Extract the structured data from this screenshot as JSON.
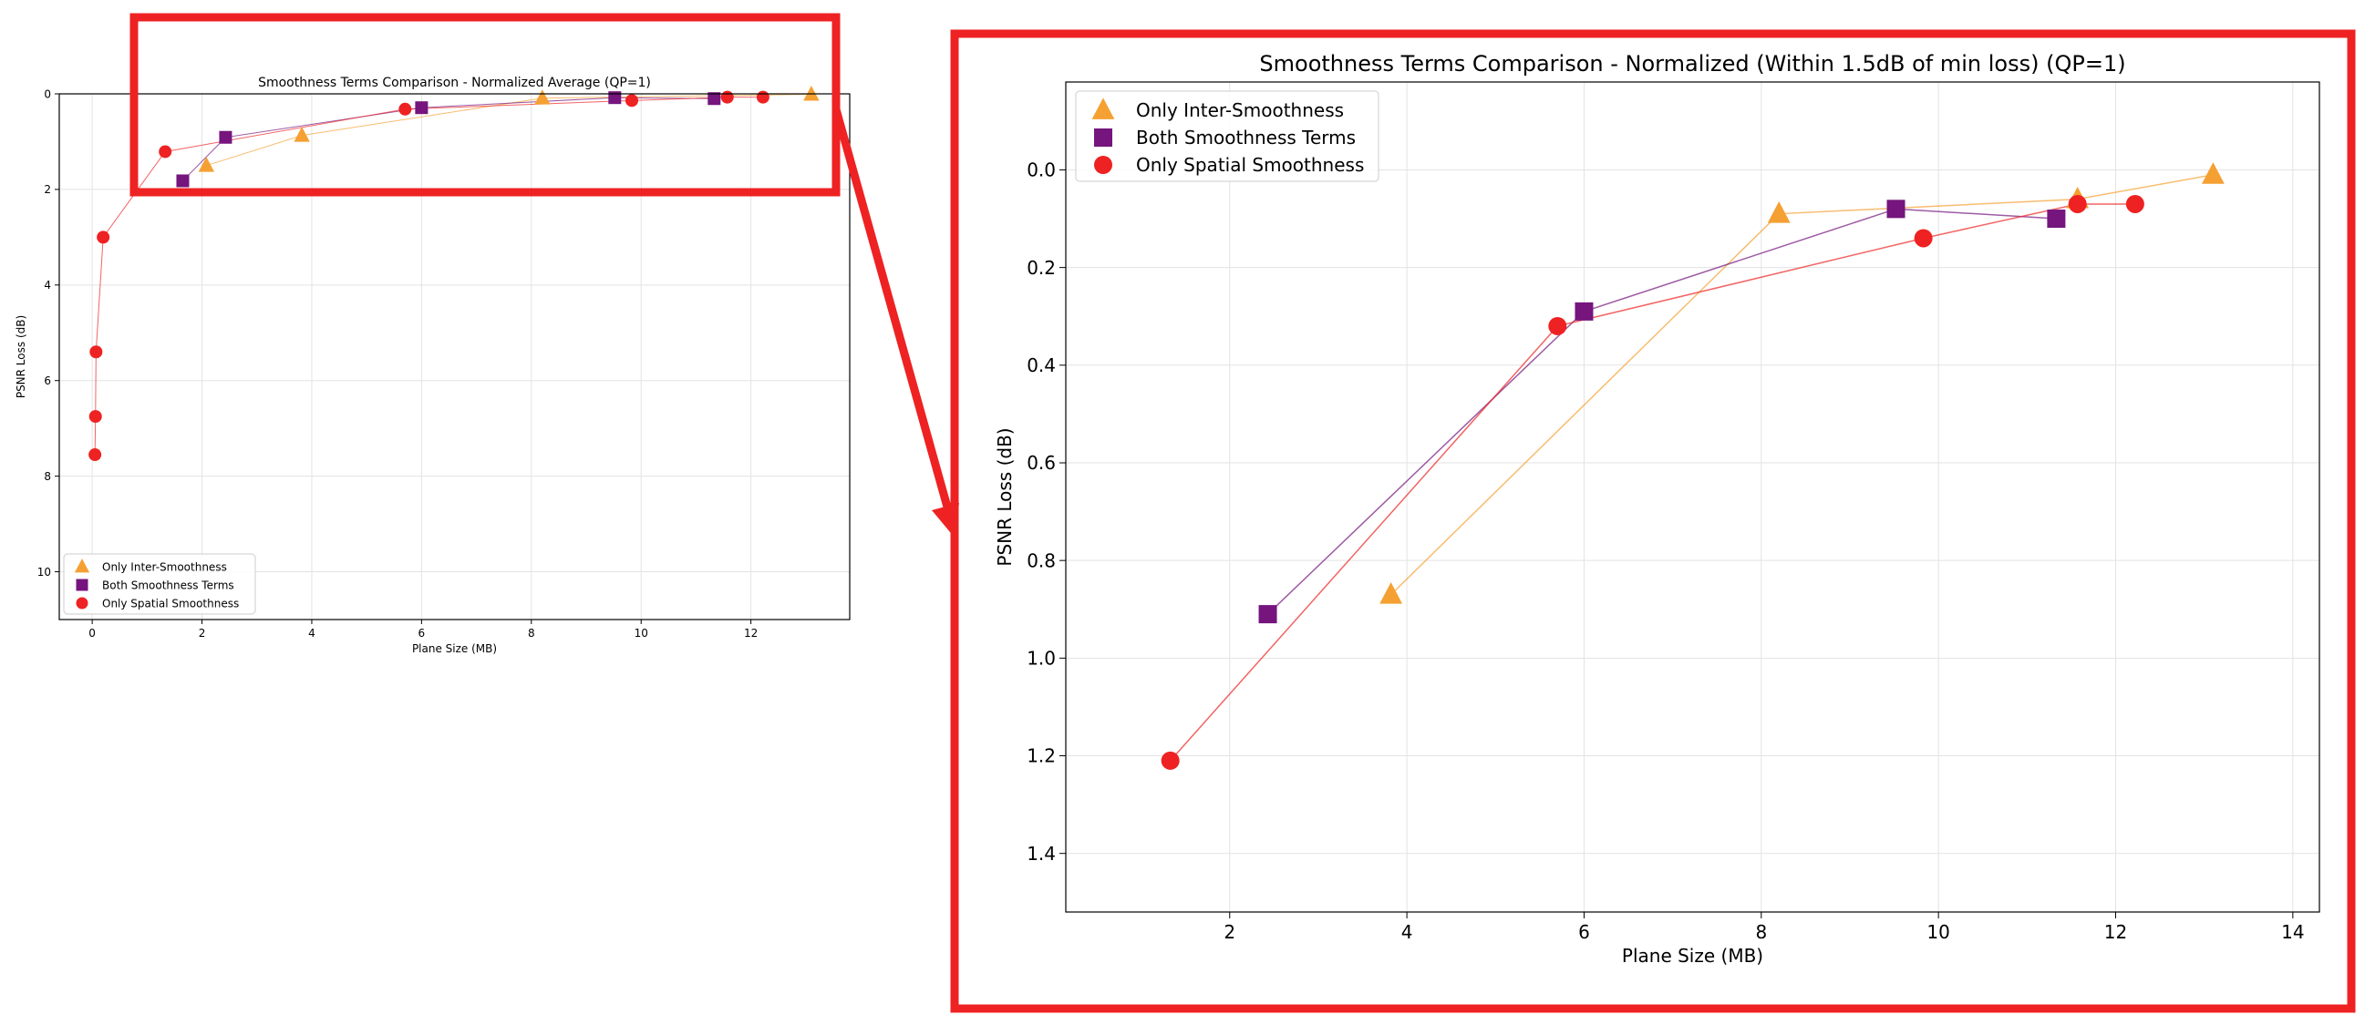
{
  "figure": {
    "colors": {
      "callout": "#ee2222",
      "inter": "#f5a032",
      "both": "#75157d",
      "spatial": "#ee2222",
      "grid": "#e3e3e3"
    }
  },
  "chart_data": [
    {
      "type": "scatter",
      "title": "Smoothness Terms Comparison - Normalized Average (QP=1)",
      "xlabel": "Plane Size (MB)",
      "ylabel": "PSNR Loss (dB)",
      "xlim": [
        -0.6,
        13.8
      ],
      "ylim": [
        11.0,
        0
      ],
      "y_inverted": true,
      "grid": true,
      "legend_placement": "lower-left",
      "xticks": [
        0,
        2,
        4,
        6,
        8,
        10,
        12
      ],
      "xtick_labels": [
        "0",
        "2",
        "4",
        "6",
        "8",
        "10",
        "12"
      ],
      "yticks": [
        0,
        2,
        4,
        6,
        8,
        10
      ],
      "ytick_labels": [
        "0",
        "2",
        "4",
        "6",
        "8",
        "10"
      ],
      "series": [
        {
          "name": "Only Inter-Smoothness",
          "marker": "triangle",
          "color": "#f5a032",
          "x": [
            2.08,
            3.82,
            8.2,
            13.1
          ],
          "y": [
            1.5,
            0.87,
            0.09,
            0.01
          ]
        },
        {
          "name": "Both Smoothness Terms",
          "marker": "square",
          "color": "#75157d",
          "x": [
            1.65,
            2.43,
            6.0,
            9.52,
            11.33
          ],
          "y": [
            1.82,
            0.91,
            0.29,
            0.08,
            0.1
          ]
        },
        {
          "name": "Only Spatial Smoothness",
          "marker": "circle",
          "color": "#ee2222",
          "x": [
            0.05,
            0.06,
            0.07,
            0.2,
            1.33,
            5.7,
            9.83,
            11.57,
            12.22
          ],
          "y": [
            7.55,
            6.75,
            5.4,
            3.0,
            1.21,
            0.32,
            0.14,
            0.07,
            0.07
          ]
        }
      ]
    },
    {
      "type": "scatter",
      "title": "Smoothness Terms Comparison - Normalized (Within 1.5dB of min loss) (QP=1)",
      "xlabel": "Plane Size (MB)",
      "ylabel": "PSNR Loss (dB)",
      "xlim": [
        0.15,
        14.3
      ],
      "ylim": [
        1.52,
        -0.18
      ],
      "y_inverted": true,
      "grid": true,
      "legend_placement": "top-left",
      "xticks": [
        2,
        4,
        6,
        8,
        10,
        12,
        14
      ],
      "xtick_labels": [
        "2",
        "4",
        "6",
        "8",
        "10",
        "12",
        "14"
      ],
      "yticks": [
        0.0,
        0.2,
        0.4,
        0.6,
        0.8,
        1.0,
        1.2,
        1.4
      ],
      "ytick_labels": [
        "0.0",
        "0.2",
        "0.4",
        "0.6",
        "0.8",
        "1.0",
        "1.2",
        "1.4"
      ],
      "series": [
        {
          "name": "Only Inter-Smoothness",
          "marker": "triangle",
          "color": "#f5a032",
          "x": [
            3.82,
            8.2,
            11.57,
            13.1
          ],
          "y": [
            0.87,
            0.09,
            0.06,
            0.01
          ]
        },
        {
          "name": "Both Smoothness Terms",
          "marker": "square",
          "color": "#75157d",
          "x": [
            2.43,
            6.0,
            9.52,
            11.33
          ],
          "y": [
            0.91,
            0.29,
            0.08,
            0.1
          ]
        },
        {
          "name": "Only Spatial Smoothness",
          "marker": "circle",
          "color": "#ee2222",
          "x": [
            1.33,
            5.7,
            9.83,
            11.57,
            12.22
          ],
          "y": [
            1.21,
            0.32,
            0.14,
            0.07,
            0.07
          ]
        }
      ]
    }
  ]
}
